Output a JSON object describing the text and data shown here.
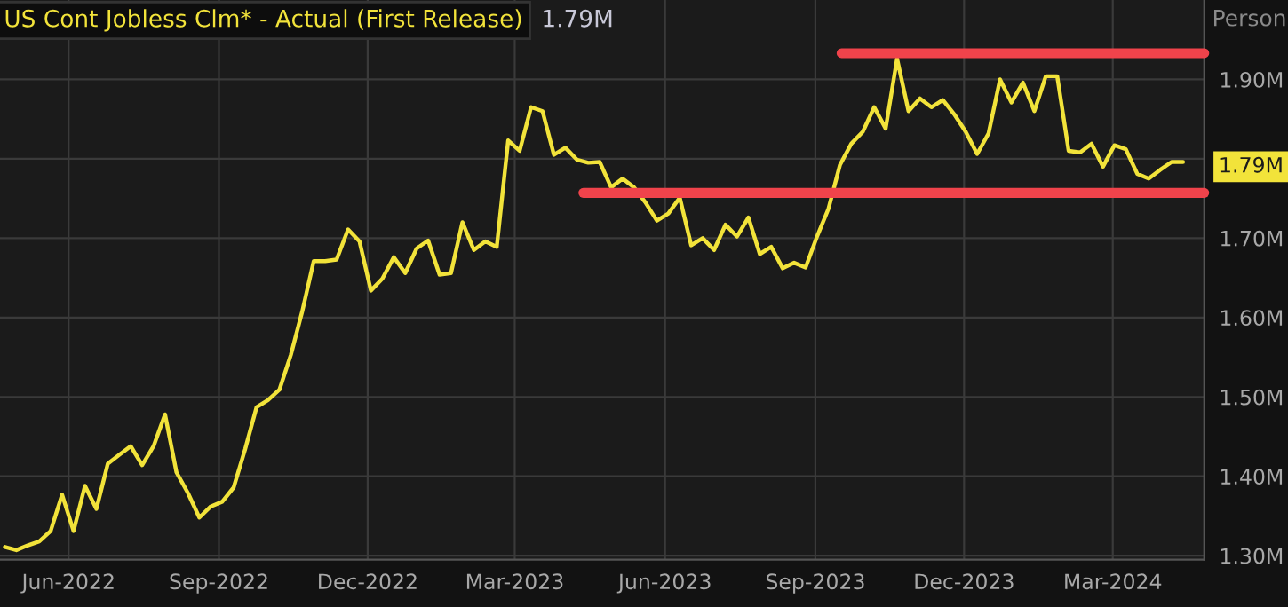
{
  "chart_data": {
    "type": "line",
    "title": "US Cont Jobless Clm* - Actual (First Release)",
    "subtitle": "1.79M",
    "ylabel": "Person",
    "x": [
      "2022-04-23",
      "2022-04-30",
      "2022-05-07",
      "2022-05-14",
      "2022-05-21",
      "2022-05-28",
      "2022-06-04",
      "2022-06-11",
      "2022-06-18",
      "2022-06-25",
      "2022-07-02",
      "2022-07-09",
      "2022-07-16",
      "2022-07-23",
      "2022-07-30",
      "2022-08-06",
      "2022-08-13",
      "2022-08-20",
      "2022-08-27",
      "2022-09-03",
      "2022-09-10",
      "2022-09-17",
      "2022-09-24",
      "2022-10-01",
      "2022-10-08",
      "2022-10-15",
      "2022-10-22",
      "2022-10-29",
      "2022-11-05",
      "2022-11-12",
      "2022-11-19",
      "2022-11-26",
      "2022-12-03",
      "2022-12-10",
      "2022-12-17",
      "2022-12-24",
      "2022-12-31",
      "2023-01-07",
      "2023-01-14",
      "2023-01-21",
      "2023-01-28",
      "2023-02-04",
      "2023-02-11",
      "2023-02-18",
      "2023-02-25",
      "2023-03-04",
      "2023-03-11",
      "2023-03-18",
      "2023-03-25",
      "2023-04-01",
      "2023-04-08",
      "2023-04-15",
      "2023-04-22",
      "2023-04-29",
      "2023-05-06",
      "2023-05-13",
      "2023-05-20",
      "2023-05-27",
      "2023-06-03",
      "2023-06-10",
      "2023-06-17",
      "2023-06-24",
      "2023-07-01",
      "2023-07-08",
      "2023-07-15",
      "2023-07-22",
      "2023-07-29",
      "2023-08-05",
      "2023-08-12",
      "2023-08-19",
      "2023-08-26",
      "2023-09-02",
      "2023-09-09",
      "2023-09-16",
      "2023-09-23",
      "2023-09-30",
      "2023-10-07",
      "2023-10-14",
      "2023-10-21",
      "2023-10-28",
      "2023-11-04",
      "2023-11-11",
      "2023-11-18",
      "2023-11-25",
      "2023-12-02",
      "2023-12-09",
      "2023-12-16",
      "2023-12-23",
      "2023-12-30",
      "2024-01-06",
      "2024-01-13",
      "2024-01-20",
      "2024-01-27",
      "2024-02-03",
      "2024-02-10",
      "2024-02-17",
      "2024-02-24",
      "2024-03-02",
      "2024-03-09",
      "2024-03-16",
      "2024-03-23",
      "2024-03-30",
      "2024-04-06",
      "2024-04-13"
    ],
    "series": [
      {
        "color": "#f2e33a",
        "values": [
          1.311,
          1.307,
          1.313,
          1.318,
          1.331,
          1.377,
          1.331,
          1.388,
          1.359,
          1.416,
          1.427,
          1.438,
          1.414,
          1.438,
          1.478,
          1.405,
          1.379,
          1.348,
          1.362,
          1.368,
          1.386,
          1.434,
          1.487,
          1.496,
          1.509,
          1.553,
          1.608,
          1.671,
          1.671,
          1.673,
          1.711,
          1.696,
          1.634,
          1.649,
          1.676,
          1.656,
          1.687,
          1.697,
          1.654,
          1.656,
          1.72,
          1.685,
          1.696,
          1.689,
          1.823,
          1.81,
          1.865,
          1.86,
          1.805,
          1.814,
          1.799,
          1.795,
          1.796,
          1.764,
          1.775,
          1.764,
          1.745,
          1.722,
          1.731,
          1.751,
          1.691,
          1.7,
          1.685,
          1.717,
          1.702,
          1.726,
          1.68,
          1.689,
          1.662,
          1.669,
          1.663,
          1.702,
          1.737,
          1.792,
          1.819,
          1.834,
          1.865,
          1.838,
          1.926,
          1.86,
          1.876,
          1.865,
          1.874,
          1.856,
          1.834,
          1.806,
          1.832,
          1.9,
          1.871,
          1.896,
          1.86,
          1.904,
          1.904,
          1.81,
          1.808,
          1.819,
          1.79,
          1.817,
          1.812,
          1.781,
          1.775,
          1.786,
          1.796,
          1.796
        ]
      },
      {
        "type": "line",
        "color": "#f0434b",
        "x": [
          "2023-09-17",
          "2024-04-26"
        ],
        "values": [
          1.933,
          1.933
        ]
      },
      {
        "type": "line",
        "color": "#f0434b",
        "x": [
          "2023-04-12",
          "2024-04-26"
        ],
        "values": [
          1.757,
          1.757
        ]
      }
    ],
    "xlim": [
      "2022-04-20",
      "2024-04-26"
    ],
    "xticks": [
      {
        "value": "2022-06-01",
        "label": "Jun-2022"
      },
      {
        "value": "2022-09-01",
        "label": "Sep-2022"
      },
      {
        "value": "2022-12-01",
        "label": "Dec-2022"
      },
      {
        "value": "2023-03-01",
        "label": "Mar-2023"
      },
      {
        "value": "2023-06-01",
        "label": "Jun-2023"
      },
      {
        "value": "2023-09-01",
        "label": "Sep-2023"
      },
      {
        "value": "2023-12-01",
        "label": "Dec-2023"
      },
      {
        "value": "2024-03-01",
        "label": "Mar-2024"
      }
    ],
    "ylim": [
      1.295,
      2.0
    ],
    "yticks": [
      {
        "value": 1.3,
        "label": "1.30M"
      },
      {
        "value": 1.4,
        "label": "1.40M"
      },
      {
        "value": 1.5,
        "label": "1.50M"
      },
      {
        "value": 1.6,
        "label": "1.60M"
      },
      {
        "value": 1.7,
        "label": "1.70M"
      },
      {
        "value": 1.8,
        "label": null
      },
      {
        "value": 1.9,
        "label": "1.90M"
      }
    ],
    "annotations": [
      {
        "text": "1.79M",
        "x": "2024-04-13",
        "y": 1.79
      }
    ],
    "grid": true,
    "legend": false
  }
}
